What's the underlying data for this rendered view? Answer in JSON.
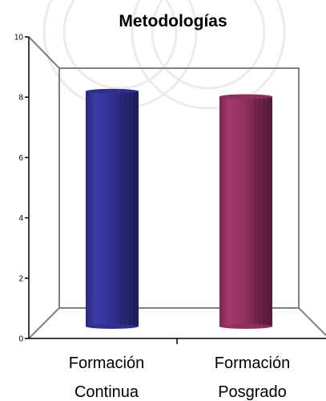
{
  "chart_data": {
    "type": "bar",
    "title": "Metodologías",
    "categories": [
      [
        "Formación",
        "Continua"
      ],
      [
        "Formación",
        "Posgrado"
      ]
    ],
    "values": [
      8.7,
      8.5
    ],
    "ylim": [
      0,
      10
    ],
    "yticks": [
      "0",
      "2",
      "4",
      "6",
      "8",
      "10"
    ],
    "grid": false,
    "bar_colors": [
      "#2f2f8f",
      "#8e2f5c"
    ],
    "background_color": "#ffffff",
    "watermark_color": "#ececec"
  }
}
